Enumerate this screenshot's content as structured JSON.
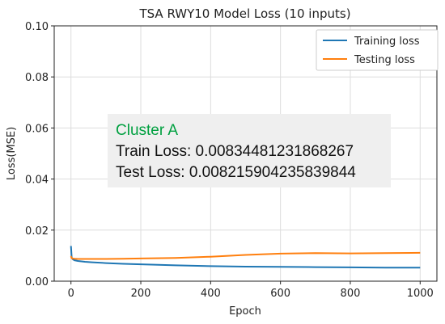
{
  "chart_data": {
    "type": "line",
    "title": "TSA RWY10 Model Loss (10 inputs)",
    "xlabel": "Epoch",
    "ylabel": "Loss(MSE)",
    "xlim": [
      0,
      1000
    ],
    "ylim": [
      0.0,
      0.1
    ],
    "xticks": [
      0,
      200,
      400,
      600,
      800,
      1000
    ],
    "xtick_labels": [
      "0",
      "200",
      "400",
      "600",
      "800",
      "1000"
    ],
    "yticks": [
      0.0,
      0.02,
      0.04,
      0.06,
      0.08,
      0.1
    ],
    "ytick_labels": [
      "0.00",
      "0.02",
      "0.04",
      "0.06",
      "0.08",
      "0.10"
    ],
    "grid": true,
    "legend_position": "top-right",
    "series": [
      {
        "name": "Training loss",
        "color": "#1f77b4",
        "x": [
          0,
          2,
          5,
          10,
          20,
          40,
          60,
          100,
          150,
          200,
          300,
          400,
          500,
          600,
          700,
          800,
          900,
          1000
        ],
        "y": [
          0.0138,
          0.0092,
          0.0086,
          0.0082,
          0.0079,
          0.0076,
          0.0074,
          0.0071,
          0.0068,
          0.0066,
          0.0062,
          0.0059,
          0.0057,
          0.0056,
          0.0055,
          0.0054,
          0.0053,
          0.0053
        ]
      },
      {
        "name": "Testing loss",
        "color": "#ff7f0e",
        "x": [
          0,
          2,
          5,
          10,
          20,
          40,
          60,
          100,
          150,
          200,
          300,
          400,
          500,
          600,
          700,
          800,
          900,
          1000
        ],
        "y": [
          0.0098,
          0.009,
          0.0089,
          0.0088,
          0.0087,
          0.0087,
          0.0087,
          0.0087,
          0.0088,
          0.0089,
          0.0091,
          0.0096,
          0.0103,
          0.0108,
          0.011,
          0.0109,
          0.011,
          0.0111
        ]
      }
    ],
    "annotation": {
      "title": "Cluster A",
      "title_color": "#00a040",
      "line1": "Train Loss: 0.00834481231868267",
      "line2": "Test Loss: 0.008215904235839844",
      "background": "#efefef"
    }
  }
}
